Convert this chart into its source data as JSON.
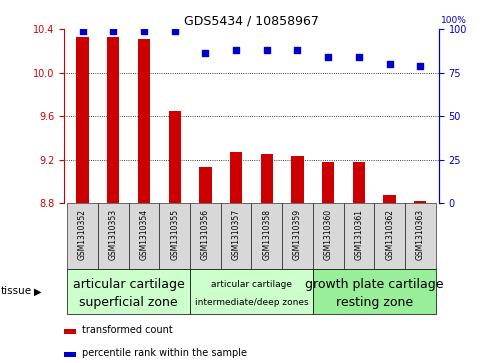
{
  "title": "GDS5434 / 10858967",
  "samples": [
    "GSM1310352",
    "GSM1310353",
    "GSM1310354",
    "GSM1310355",
    "GSM1310356",
    "GSM1310357",
    "GSM1310358",
    "GSM1310359",
    "GSM1310360",
    "GSM1310361",
    "GSM1310362",
    "GSM1310363"
  ],
  "bar_values": [
    10.33,
    10.33,
    10.31,
    9.65,
    9.13,
    9.27,
    9.25,
    9.23,
    9.18,
    9.18,
    8.88,
    8.82
  ],
  "dot_values": [
    99,
    99,
    99,
    99,
    86,
    88,
    88,
    88,
    84,
    84,
    80,
    79
  ],
  "bar_color": "#cc0000",
  "dot_color": "#0000cc",
  "ylim_left": [
    8.8,
    10.4
  ],
  "ylim_right": [
    0,
    100
  ],
  "yticks_left": [
    8.8,
    9.2,
    9.6,
    10.0,
    10.4
  ],
  "yticks_right": [
    0,
    25,
    50,
    75,
    100
  ],
  "groups": [
    {
      "label": "articular cartilage\nsuperficial zone",
      "start": 0,
      "end": 4,
      "fontsize": 9
    },
    {
      "label": "articular cartilage\nintermediate/deep zones",
      "start": 4,
      "end": 8,
      "fontsize": 6.5
    },
    {
      "label": "growth plate cartilage\nresting zone",
      "start": 8,
      "end": 12,
      "fontsize": 9
    }
  ],
  "group_colors": [
    "#ccffcc",
    "#ccffcc",
    "#99ee99"
  ],
  "tissue_label": "tissue",
  "legend_bar": "transformed count",
  "legend_dot": "percentile rank within the sample",
  "sample_bg_color": "#d8d8d8",
  "bar_width": 0.4
}
